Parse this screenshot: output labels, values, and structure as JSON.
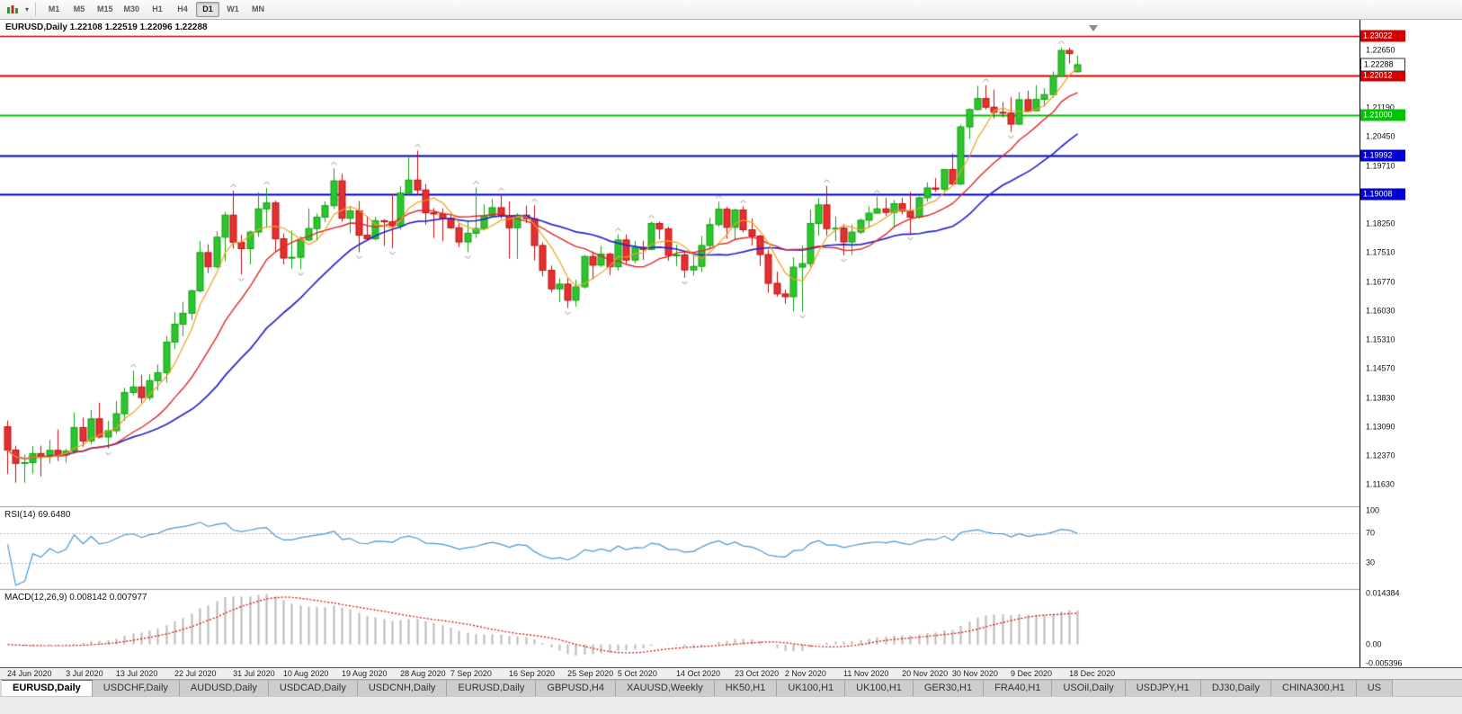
{
  "toolbar": {
    "timeframes": [
      "M1",
      "M5",
      "M15",
      "M30",
      "H1",
      "H4",
      "D1",
      "W1",
      "MN"
    ],
    "active_timeframe": "D1"
  },
  "chart": {
    "title": "EURUSD,Daily 1.22108 1.22519 1.22096 1.22288"
  },
  "price_scale": {
    "ticks": [
      "1.22650",
      "1.21930",
      "1.21190",
      "1.20450",
      "1.19710",
      "1.18970",
      "1.18250",
      "1.17510",
      "1.16770",
      "1.16030",
      "1.15310",
      "1.14570",
      "1.13830",
      "1.13090",
      "1.12370",
      "1.11630"
    ],
    "current_price": {
      "label": "1.22288",
      "value": 1.22288
    },
    "levels": [
      {
        "label": "1.23022",
        "value": 1.23022,
        "color": "#d40000",
        "width": 1.4
      },
      {
        "label": "1.22012",
        "value": 1.22012,
        "color": "#d40000",
        "width": 2
      },
      {
        "label": "1.21000",
        "value": 1.21,
        "color": "#00c400",
        "width": 2
      },
      {
        "label": "1.19992",
        "value": 1.19992,
        "color": "#0000d4",
        "width": 2
      },
      {
        "label": "1.19008",
        "value": 1.19008,
        "color": "#0000d4",
        "width": 2
      }
    ]
  },
  "rsi_panel": {
    "label": "RSI(14) 69.6480",
    "ticks": [
      "100",
      "70",
      "30"
    ],
    "levels": [
      70,
      30
    ],
    "color": "#4a96d2",
    "range": [
      0,
      100
    ]
  },
  "macd_panel": {
    "label": "MACD(12,26,9) 0.008142 0.007977",
    "ticks": [
      "0.014384",
      "0.00",
      "-0.005396"
    ],
    "max": 0.014384,
    "min": -0.005396,
    "histogram_color": "#b9b9b9",
    "signal_color": "#d40000"
  },
  "time_axis": {
    "labels": [
      {
        "text": "24 Jun 2020",
        "index": 0
      },
      {
        "text": "3 Jul 2020",
        "index": 7
      },
      {
        "text": "13 Jul 2020",
        "index": 13
      },
      {
        "text": "22 Jul 2020",
        "index": 20
      },
      {
        "text": "31 Jul 2020",
        "index": 27
      },
      {
        "text": "10 Aug 2020",
        "index": 33
      },
      {
        "text": "19 Aug 2020",
        "index": 40
      },
      {
        "text": "28 Aug 2020",
        "index": 47
      },
      {
        "text": "7 Sep 2020",
        "index": 53
      },
      {
        "text": "16 Sep 2020",
        "index": 60
      },
      {
        "text": "25 Sep 2020",
        "index": 67
      },
      {
        "text": "5 Oct 2020",
        "index": 73
      },
      {
        "text": "14 Oct 2020",
        "index": 80
      },
      {
        "text": "23 Oct 2020",
        "index": 87
      },
      {
        "text": "2 Nov 2020",
        "index": 93
      },
      {
        "text": "11 Nov 2020",
        "index": 100
      },
      {
        "text": "20 Nov 2020",
        "index": 107
      },
      {
        "text": "30 Nov 2020",
        "index": 113
      },
      {
        "text": "9 Dec 2020",
        "index": 120
      },
      {
        "text": "18 Dec 2020",
        "index": 127
      }
    ]
  },
  "tabs": {
    "active_index": 0,
    "items": [
      "EURUSD,Daily",
      "USDCHF,Daily",
      "AUDUSD,Daily",
      "USDCAD,Daily",
      "USDCNH,Daily",
      "EURUSD,Daily",
      "GBPUSD,H4",
      "XAUUSD,Weekly",
      "HK50,H1",
      "UK100,H1",
      "UK100,H1",
      "GER30,H1",
      "FRA40,H1",
      "USOil,Daily",
      "USDJPY,H1",
      "DJ30,Daily",
      "CHINA300,H1",
      "US"
    ]
  },
  "chart_data": {
    "type": "candlestick",
    "symbol": "EURUSD",
    "timeframe": "Daily",
    "ohlc_current": {
      "open": 1.22108,
      "high": 1.22519,
      "low": 1.22096,
      "close": 1.22288
    },
    "ylim": [
      1.1115,
      1.232
    ],
    "up_color": "#2dc52d",
    "up_border": "#12a012",
    "down_color": "#e33131",
    "down_border": "#c01010",
    "moving_averages": [
      {
        "name": "fast-ma",
        "period": 5,
        "color": "#f0a11e",
        "width": 1.2
      },
      {
        "name": "medium-ma",
        "period": 13,
        "color": "#e02828",
        "width": 1.4
      },
      {
        "name": "slow-ma",
        "period": 24,
        "color": "#2626cc",
        "width": 1.7
      }
    ],
    "indicators": [
      {
        "name": "RSI",
        "period": 14,
        "current": 69.648
      },
      {
        "name": "MACD",
        "fast": 12,
        "slow": 26,
        "signal": 9,
        "current_macd": 0.008142,
        "current_signal": 0.007977
      },
      {
        "name": "Fractals",
        "color": "#909090"
      }
    ],
    "candles": [
      [
        1.131,
        1.1326,
        1.119,
        1.1251
      ],
      [
        1.1251,
        1.1262,
        1.1168,
        1.1217
      ],
      [
        1.1217,
        1.1239,
        1.1168,
        1.1219
      ],
      [
        1.1219,
        1.1261,
        1.1191,
        1.1242
      ],
      [
        1.1242,
        1.1262,
        1.1184,
        1.1235
      ],
      [
        1.1235,
        1.1276,
        1.1217,
        1.125
      ],
      [
        1.125,
        1.1303,
        1.1223,
        1.1239
      ],
      [
        1.1239,
        1.1254,
        1.1219,
        1.1248
      ],
      [
        1.1248,
        1.1346,
        1.1241,
        1.1308
      ],
      [
        1.1308,
        1.1333,
        1.1259,
        1.1274
      ],
      [
        1.1274,
        1.1352,
        1.1265,
        1.133
      ],
      [
        1.133,
        1.1371,
        1.128,
        1.1284
      ],
      [
        1.1284,
        1.1325,
        1.1254,
        1.13
      ],
      [
        1.13,
        1.1375,
        1.1292,
        1.1343
      ],
      [
        1.1343,
        1.1409,
        1.1325,
        1.1397
      ],
      [
        1.1397,
        1.1452,
        1.139,
        1.1411
      ],
      [
        1.1411,
        1.1442,
        1.137,
        1.1384
      ],
      [
        1.1384,
        1.1444,
        1.1377,
        1.1427
      ],
      [
        1.1427,
        1.1468,
        1.1402,
        1.1447
      ],
      [
        1.1447,
        1.154,
        1.1422,
        1.1525
      ],
      [
        1.1525,
        1.1601,
        1.1507,
        1.157
      ],
      [
        1.157,
        1.1627,
        1.154,
        1.1598
      ],
      [
        1.1598,
        1.1658,
        1.1581,
        1.1655
      ],
      [
        1.1655,
        1.1781,
        1.165,
        1.1752
      ],
      [
        1.1752,
        1.1773,
        1.17,
        1.1716
      ],
      [
        1.1716,
        1.1806,
        1.1712,
        1.1791
      ],
      [
        1.1791,
        1.1855,
        1.173,
        1.1847
      ],
      [
        1.1847,
        1.1909,
        1.1762,
        1.1778
      ],
      [
        1.1778,
        1.1797,
        1.1696,
        1.1762
      ],
      [
        1.1762,
        1.1808,
        1.1722,
        1.1804
      ],
      [
        1.1804,
        1.1905,
        1.1791,
        1.1863
      ],
      [
        1.1863,
        1.1916,
        1.1815,
        1.1878
      ],
      [
        1.1878,
        1.1884,
        1.1755,
        1.1787
      ],
      [
        1.1787,
        1.18,
        1.1722,
        1.1738
      ],
      [
        1.1738,
        1.1808,
        1.1711,
        1.174
      ],
      [
        1.174,
        1.1793,
        1.171,
        1.1784
      ],
      [
        1.1784,
        1.1864,
        1.1781,
        1.1813
      ],
      [
        1.1813,
        1.1851,
        1.1782,
        1.1842
      ],
      [
        1.1842,
        1.1882,
        1.183,
        1.1871
      ],
      [
        1.1871,
        1.1966,
        1.1863,
        1.1934
      ],
      [
        1.1934,
        1.1952,
        1.183,
        1.1839
      ],
      [
        1.1839,
        1.1869,
        1.1801,
        1.1858
      ],
      [
        1.1858,
        1.1883,
        1.1753,
        1.1796
      ],
      [
        1.1796,
        1.1845,
        1.1782,
        1.1787
      ],
      [
        1.1787,
        1.1843,
        1.1783,
        1.1833
      ],
      [
        1.1833,
        1.1837,
        1.1769,
        1.183
      ],
      [
        1.183,
        1.19,
        1.1763,
        1.182
      ],
      [
        1.182,
        1.192,
        1.181,
        1.1903
      ],
      [
        1.1903,
        1.1997,
        1.1898,
        1.1936
      ],
      [
        1.1936,
        1.2011,
        1.1898,
        1.1911
      ],
      [
        1.1911,
        1.1926,
        1.1823,
        1.1853
      ],
      [
        1.1853,
        1.1865,
        1.1789,
        1.185
      ],
      [
        1.185,
        1.1864,
        1.1781,
        1.1839
      ],
      [
        1.1839,
        1.1849,
        1.1812,
        1.1815
      ],
      [
        1.1815,
        1.1827,
        1.1766,
        1.1779
      ],
      [
        1.1779,
        1.1834,
        1.1753,
        1.1801
      ],
      [
        1.1801,
        1.1917,
        1.1789,
        1.1813
      ],
      [
        1.1813,
        1.1874,
        1.1808,
        1.1845
      ],
      [
        1.1845,
        1.1888,
        1.184,
        1.1866
      ],
      [
        1.1866,
        1.19,
        1.1838,
        1.1846
      ],
      [
        1.1846,
        1.1882,
        1.1737,
        1.1815
      ],
      [
        1.1815,
        1.1852,
        1.1736,
        1.1847
      ],
      [
        1.1847,
        1.1871,
        1.1827,
        1.1838
      ],
      [
        1.1838,
        1.1872,
        1.1732,
        1.177
      ],
      [
        1.177,
        1.1778,
        1.1692,
        1.1707
      ],
      [
        1.1707,
        1.1719,
        1.1651,
        1.166
      ],
      [
        1.166,
        1.1686,
        1.1626,
        1.1672
      ],
      [
        1.1672,
        1.1688,
        1.1611,
        1.1631
      ],
      [
        1.1631,
        1.1683,
        1.1615,
        1.1665
      ],
      [
        1.1665,
        1.1746,
        1.1661,
        1.1742
      ],
      [
        1.1742,
        1.1755,
        1.1684,
        1.172
      ],
      [
        1.172,
        1.1769,
        1.1715,
        1.1748
      ],
      [
        1.1748,
        1.1752,
        1.1695,
        1.1716
      ],
      [
        1.1716,
        1.1798,
        1.1706,
        1.1784
      ],
      [
        1.1784,
        1.1798,
        1.1724,
        1.1733
      ],
      [
        1.1733,
        1.1781,
        1.1725,
        1.1765
      ],
      [
        1.1765,
        1.1782,
        1.1733,
        1.176
      ],
      [
        1.176,
        1.1831,
        1.1758,
        1.1826
      ],
      [
        1.1826,
        1.1831,
        1.1786,
        1.1812
      ],
      [
        1.1812,
        1.1818,
        1.1731,
        1.1745
      ],
      [
        1.1745,
        1.1772,
        1.1718,
        1.1746
      ],
      [
        1.1746,
        1.1758,
        1.1688,
        1.1708
      ],
      [
        1.1708,
        1.1746,
        1.1694,
        1.1717
      ],
      [
        1.1717,
        1.1794,
        1.1703,
        1.177
      ],
      [
        1.177,
        1.184,
        1.176,
        1.1823
      ],
      [
        1.1823,
        1.1881,
        1.1817,
        1.1862
      ],
      [
        1.1862,
        1.1868,
        1.1787,
        1.1816
      ],
      [
        1.1816,
        1.1864,
        1.1786,
        1.186
      ],
      [
        1.186,
        1.1869,
        1.1803,
        1.181
      ],
      [
        1.181,
        1.1838,
        1.177,
        1.1794
      ],
      [
        1.1794,
        1.1797,
        1.1718,
        1.1747
      ],
      [
        1.1747,
        1.1759,
        1.165,
        1.1674
      ],
      [
        1.1674,
        1.1704,
        1.164,
        1.1647
      ],
      [
        1.1647,
        1.1658,
        1.1622,
        1.164
      ],
      [
        1.164,
        1.174,
        1.1603,
        1.1715
      ],
      [
        1.1715,
        1.177,
        1.1602,
        1.1724
      ],
      [
        1.1724,
        1.1861,
        1.1715,
        1.1826
      ],
      [
        1.1826,
        1.189,
        1.1795,
        1.1873
      ],
      [
        1.1873,
        1.1921,
        1.1795,
        1.1813
      ],
      [
        1.1813,
        1.1843,
        1.1781,
        1.1814
      ],
      [
        1.1814,
        1.1824,
        1.1745,
        1.1779
      ],
      [
        1.1779,
        1.1823,
        1.1746,
        1.1804
      ],
      [
        1.1804,
        1.1838,
        1.1799,
        1.1834
      ],
      [
        1.1834,
        1.1869,
        1.1814,
        1.1852
      ],
      [
        1.1852,
        1.1894,
        1.185,
        1.1863
      ],
      [
        1.1863,
        1.1891,
        1.1845,
        1.1854
      ],
      [
        1.1854,
        1.1885,
        1.1815,
        1.1876
      ],
      [
        1.1876,
        1.1891,
        1.1849,
        1.1857
      ],
      [
        1.1857,
        1.1906,
        1.18,
        1.1842
      ],
      [
        1.1842,
        1.1895,
        1.1838,
        1.1891
      ],
      [
        1.1891,
        1.193,
        1.1881,
        1.1916
      ],
      [
        1.1916,
        1.1941,
        1.1906,
        1.1913
      ],
      [
        1.1913,
        1.1964,
        1.1908,
        1.1963
      ],
      [
        1.1963,
        1.2003,
        1.1923,
        1.1926
      ],
      [
        1.1926,
        1.2077,
        1.1923,
        1.2071
      ],
      [
        1.2071,
        1.2118,
        1.204,
        1.2115
      ],
      [
        1.2115,
        1.2175,
        1.2113,
        1.2143
      ],
      [
        1.2143,
        1.2177,
        1.2115,
        1.2121
      ],
      [
        1.2121,
        1.2166,
        1.2092,
        1.2108
      ],
      [
        1.2108,
        1.2134,
        1.2095,
        1.2106
      ],
      [
        1.2106,
        1.2147,
        1.2058,
        1.2078
      ],
      [
        1.2078,
        1.2159,
        1.2076,
        1.214
      ],
      [
        1.214,
        1.2163,
        1.211,
        1.2112
      ],
      [
        1.2112,
        1.2177,
        1.211,
        1.2141
      ],
      [
        1.2141,
        1.2169,
        1.2122,
        1.2153
      ],
      [
        1.2153,
        1.2212,
        1.2145,
        1.22
      ],
      [
        1.22,
        1.2273,
        1.2197,
        1.2265
      ],
      [
        1.2265,
        1.2272,
        1.2232,
        1.2257
      ],
      [
        1.22108,
        1.22519,
        1.22096,
        1.22288
      ]
    ]
  }
}
